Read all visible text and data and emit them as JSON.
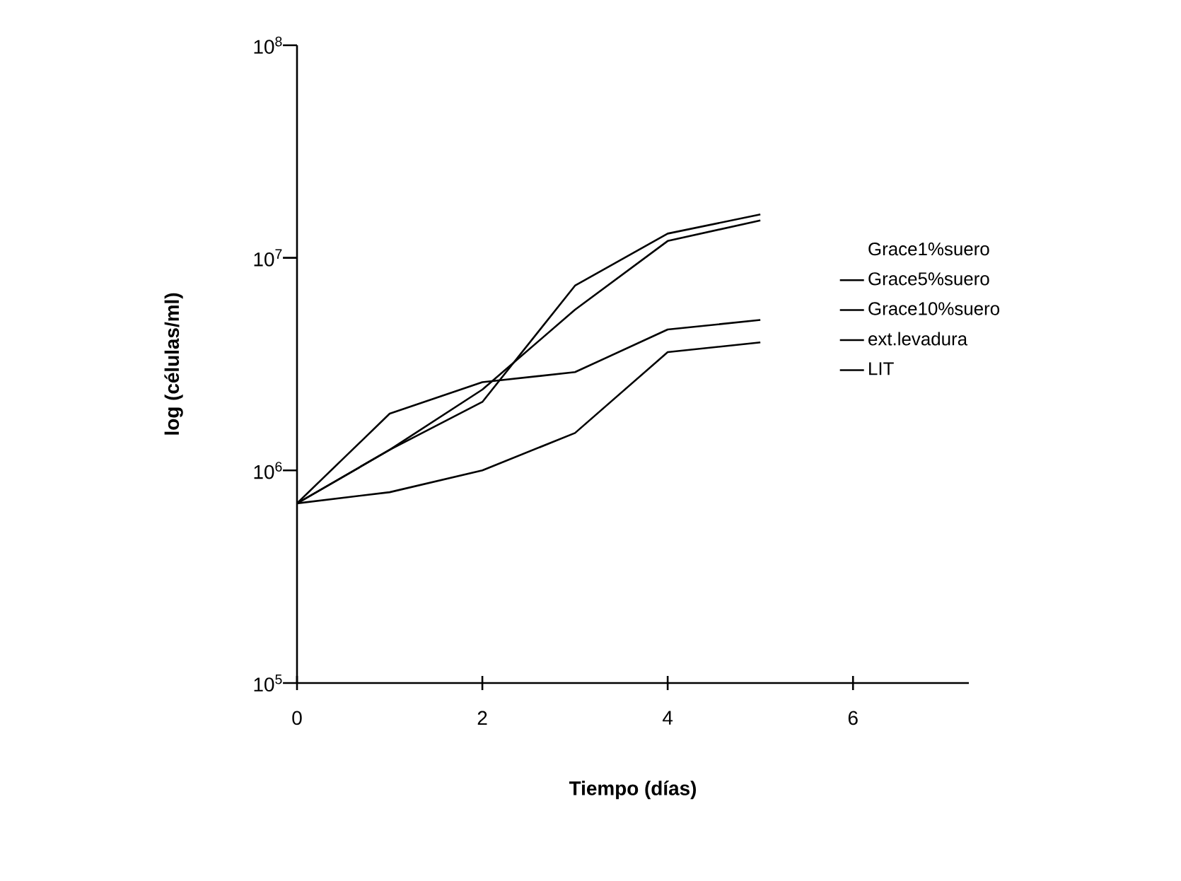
{
  "chart_data": {
    "type": "line",
    "xlabel": "Tiempo (días)",
    "ylabel": "log (células/ml)",
    "log": "y",
    "x": [
      0,
      1,
      2,
      3,
      4,
      5
    ],
    "xlim": [
      0,
      7.25
    ],
    "xticks": [
      0,
      2,
      4,
      6
    ],
    "ylim": [
      100000,
      100000000
    ],
    "yticks": [
      {
        "value": 100000,
        "label": "10$^{5}$"
      },
      {
        "value": 1000000,
        "label": "10$^{6}$"
      },
      {
        "value": 10000000,
        "label": "10$^{7}$"
      },
      {
        "value": 100000000,
        "label": "10$^{8}$"
      }
    ],
    "grid": false,
    "legend": "right",
    "marker": "none",
    "line_style": "solid",
    "series": [
      {
        "name": "Grace1%suero",
        "values": [
          null,
          null,
          null,
          null,
          null,
          null
        ]
      },
      {
        "name": "Grace5%suero",
        "color": "#000000",
        "values": [
          700000,
          1250000,
          2400000,
          5700000,
          12000000,
          15000000
        ]
      },
      {
        "name": "Grace10%suero",
        "color": "#000000",
        "values": [
          700000,
          1850000,
          2600000,
          2900000,
          4600000,
          5100000
        ]
      },
      {
        "name": "ext.levadura",
        "color": "#000000",
        "values": [
          700000,
          1250000,
          2100000,
          7400000,
          13000000,
          16000000
        ]
      },
      {
        "name": "LIT",
        "color": "#000000",
        "values": [
          700000,
          790000,
          1000000,
          1500000,
          3600000,
          4000000
        ]
      }
    ]
  }
}
